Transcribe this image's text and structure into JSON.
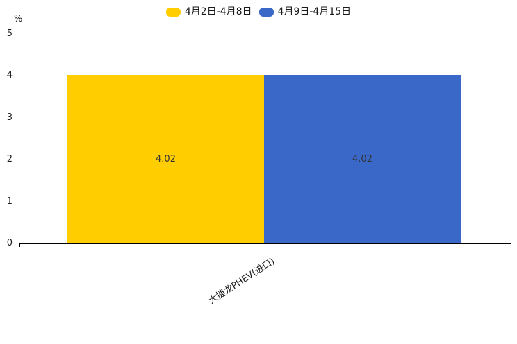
{
  "chart_data": {
    "type": "bar",
    "title": "",
    "xlabel": "",
    "ylabel": "%",
    "categories": [
      "大捷龙PHEV(进口)"
    ],
    "series": [
      {
        "name": "4月2日-4月8日",
        "color": "#FFCD00",
        "values": [
          4.02
        ]
      },
      {
        "name": "4月9日-4月15日",
        "color": "#3A68C9",
        "values": [
          4.02
        ]
      }
    ],
    "value_labels": [
      [
        "4.02"
      ],
      [
        "4.02"
      ]
    ],
    "ylim": [
      0,
      5
    ],
    "yticks": [
      0,
      1,
      2,
      3,
      4,
      5
    ],
    "grid": false,
    "legend_position": "top-center",
    "colors": {
      "background": "#ffffff",
      "axis": "#000000",
      "tick_text": "#1a1a1a",
      "value_label_text": "#333333"
    }
  }
}
